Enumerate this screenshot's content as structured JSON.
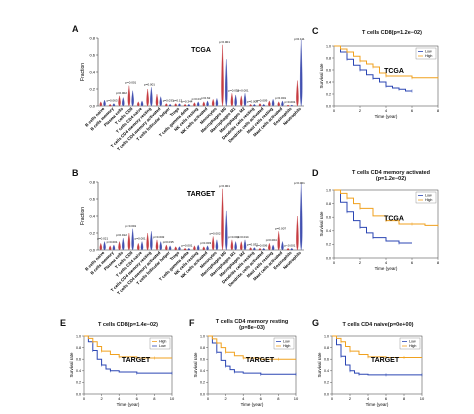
{
  "chart_data": [
    {
      "panel": "A",
      "type": "violin",
      "title": "TCGA",
      "ylabel": "Fraction",
      "ylim": [
        0,
        0.8
      ],
      "yticks": [
        "0.0",
        "0.2",
        "0.4",
        "0.6",
        "0.8"
      ],
      "categories": [
        "B cells naive",
        "B cells memory",
        "Plasma cells",
        "T cells CD8",
        "T cells CD4 naive",
        "T cells CD4 memory resting",
        "T cells CD4 memory activated",
        "T cells follicular helper",
        "Tregs",
        "T cells gamma delta",
        "NK cells resting",
        "NK cells activated",
        "Monocytes",
        "Macrophages M0",
        "Macrophages M1",
        "Macrophages M2",
        "Dendritic cells resting",
        "Dendritic cells activated",
        "Mast cells resting",
        "Mast cells activated",
        "Eosinophils",
        "Neutrophils"
      ],
      "series": [
        {
          "name": "Low",
          "color": "#c0282d",
          "values": [
            0.05,
            0.02,
            0.12,
            0.24,
            0.05,
            0.2,
            0.14,
            0.03,
            0.03,
            0.02,
            0.04,
            0.05,
            0.08,
            0.72,
            0.15,
            0.12,
            0.02,
            0.03,
            0.06,
            0.05,
            0.01,
            0.3
          ]
        },
        {
          "name": "High",
          "color": "#2e3ea8",
          "values": [
            0.07,
            0.03,
            0.1,
            0.18,
            0.06,
            0.22,
            0.11,
            0.02,
            0.03,
            0.02,
            0.05,
            0.06,
            0.09,
            0.55,
            0.13,
            0.15,
            0.02,
            0.02,
            0.08,
            0.06,
            0.01,
            0.78
          ]
        }
      ],
      "pvalues": [
        "",
        "p=0.063",
        "p=0.002",
        "p=0.001",
        "",
        "p=0.001",
        "",
        "p=0.033",
        "p=0.13",
        "p=0.344",
        "p=0.01",
        "p=0.62",
        "",
        "p<0.001",
        "p=0.052",
        "p<0.001",
        "p=0.003",
        "p=0.009",
        "",
        "p<0.001",
        "p=0.001",
        "p=0.111"
      ]
    },
    {
      "panel": "B",
      "type": "violin",
      "title": "TARGET",
      "ylabel": "Fraction",
      "ylim": [
        0,
        0.8
      ],
      "yticks": [
        "0.0",
        "0.2",
        "0.4",
        "0.6",
        "0.8"
      ],
      "categories": [
        "B cells naive",
        "B cells memory",
        "Plasma cells",
        "T cells CD8",
        "T cells CD4 naive",
        "T cells CD4 memory resting",
        "T cells CD4 memory activated",
        "T cells follicular helper",
        "Tregs",
        "T cells gamma delta",
        "NK cells resting",
        "NK cells activated",
        "Monocytes",
        "Macrophages M0",
        "Macrophages M1",
        "Macrophages M2",
        "Dendritic cells resting",
        "Dendritic cells activated",
        "Mast cells resting",
        "Mast cells activated",
        "Eosinophils",
        "Neutrophils"
      ],
      "series": [
        {
          "name": "Low",
          "color": "#c0282d",
          "values": [
            0.08,
            0.05,
            0.1,
            0.2,
            0.08,
            0.2,
            0.12,
            0.06,
            0.04,
            0.02,
            0.05,
            0.04,
            0.16,
            0.72,
            0.12,
            0.1,
            0.03,
            0.02,
            0.08,
            0.22,
            0.02,
            0.4
          ]
        },
        {
          "name": "High",
          "color": "#2e3ea8",
          "values": [
            0.1,
            0.06,
            0.14,
            0.25,
            0.1,
            0.22,
            0.1,
            0.05,
            0.04,
            0.02,
            0.06,
            0.05,
            0.12,
            0.46,
            0.1,
            0.12,
            0.03,
            0.02,
            0.06,
            0.1,
            0.02,
            0.78
          ]
        }
      ],
      "pvalues": [
        "p=0.021",
        "p=0.001",
        "p=0.012",
        "p<0.001",
        "p=0.001",
        "",
        "p=0.032",
        "p=0.035",
        "",
        "p=0.001",
        "",
        "p=0.003",
        "p=0.002",
        "p<0.001",
        "p=0.001",
        "p=0.014",
        "p=0.032",
        "p=0.006",
        "p=0.004",
        "p=0.007",
        "p<0.001",
        "p<0.001"
      ]
    },
    {
      "panel": "C",
      "type": "line",
      "title": "T cells CD8(p=1.2e−02)",
      "inner_title": "TCGA",
      "xlabel": "Time (year)",
      "ylabel": "Survival rate",
      "xlim": [
        0,
        8
      ],
      "ylim": [
        0,
        1
      ],
      "xticks": [
        "0",
        "2",
        "4",
        "6",
        "8"
      ],
      "yticks": [
        "0.0",
        "0.2",
        "0.4",
        "0.6",
        "0.8",
        "1.0"
      ],
      "legend": [
        "Low",
        "High"
      ],
      "series": [
        {
          "name": "Low",
          "color": "#2b46b3",
          "x": [
            0,
            0.5,
            1,
            1.5,
            2,
            2.5,
            3,
            3.5,
            4,
            4.5,
            5,
            5.5,
            6
          ],
          "y": [
            1,
            0.9,
            0.78,
            0.68,
            0.6,
            0.52,
            0.46,
            0.4,
            0.33,
            0.3,
            0.28,
            0.25,
            0.25
          ]
        },
        {
          "name": "High",
          "color": "#f0a11f",
          "x": [
            0,
            0.5,
            1,
            1.5,
            2,
            2.5,
            3,
            3.5,
            4,
            5,
            6,
            7,
            8
          ],
          "y": [
            1,
            0.95,
            0.9,
            0.83,
            0.75,
            0.7,
            0.65,
            0.55,
            0.5,
            0.5,
            0.47,
            0.47,
            0.47
          ]
        }
      ]
    },
    {
      "panel": "D",
      "type": "line",
      "title": "T cells CD4 memory activated (p=1.2e−02)",
      "inner_title": "TCGA",
      "xlabel": "Time (year)",
      "ylabel": "Survival rate",
      "xlim": [
        0,
        8
      ],
      "ylim": [
        0,
        1
      ],
      "xticks": [
        "0",
        "2",
        "4",
        "6",
        "8"
      ],
      "yticks": [
        "0.0",
        "0.2",
        "0.4",
        "0.6",
        "0.8",
        "1.0"
      ],
      "legend": [
        "Low",
        "High"
      ],
      "series": [
        {
          "name": "Low",
          "color": "#2b46b3",
          "x": [
            0,
            0.5,
            1,
            1.5,
            2,
            2.5,
            3,
            4,
            5,
            6
          ],
          "y": [
            1,
            0.82,
            0.68,
            0.55,
            0.45,
            0.37,
            0.3,
            0.25,
            0.22,
            0.22
          ]
        },
        {
          "name": "High",
          "color": "#f0a11f",
          "x": [
            0,
            0.5,
            1,
            1.5,
            2,
            3,
            4,
            5,
            6,
            7,
            8
          ],
          "y": [
            1,
            0.95,
            0.88,
            0.8,
            0.73,
            0.62,
            0.55,
            0.5,
            0.5,
            0.48,
            0.48
          ]
        }
      ]
    },
    {
      "panel": "E",
      "type": "line",
      "title": "T cells CD8(p=1.4e−02)",
      "inner_title": "TARGET",
      "xlabel": "Time (year)",
      "ylabel": "Survival rate",
      "xlim": [
        0,
        10
      ],
      "ylim": [
        0,
        1
      ],
      "xticks": [
        "0",
        "2",
        "4",
        "6",
        "8",
        "10"
      ],
      "yticks": [
        "0.0",
        "0.2",
        "0.4",
        "0.6",
        "0.8",
        "1.0"
      ],
      "legend": [
        "High",
        "Low"
      ],
      "series": [
        {
          "name": "Low",
          "color": "#2b46b3",
          "x": [
            0,
            0.5,
            1,
            1.5,
            2,
            2.5,
            3,
            4,
            6,
            8,
            10
          ],
          "y": [
            1,
            0.9,
            0.75,
            0.6,
            0.5,
            0.43,
            0.4,
            0.38,
            0.36,
            0.36,
            0.36
          ]
        },
        {
          "name": "High",
          "color": "#f0a11f",
          "x": [
            0,
            0.5,
            1,
            1.5,
            2,
            3,
            4,
            6,
            8,
            10
          ],
          "y": [
            1,
            0.96,
            0.9,
            0.82,
            0.74,
            0.68,
            0.64,
            0.62,
            0.62,
            0.62
          ]
        }
      ]
    },
    {
      "panel": "F",
      "type": "line",
      "title": "T cells CD4 memory resting (p=8e−03)",
      "inner_title": "TARGET",
      "xlabel": "Time (year)",
      "ylabel": "Survival rate",
      "xlim": [
        0,
        10
      ],
      "ylim": [
        0,
        1
      ],
      "xticks": [
        "0",
        "2",
        "4",
        "6",
        "8",
        "10"
      ],
      "yticks": [
        "0.0",
        "0.2",
        "0.4",
        "0.6",
        "0.8",
        "1.0"
      ],
      "legend": [
        "Low",
        "High"
      ],
      "series": [
        {
          "name": "Low",
          "color": "#2b46b3",
          "x": [
            0,
            0.5,
            1,
            1.5,
            2,
            2.5,
            3,
            4,
            6,
            8,
            10
          ],
          "y": [
            1,
            0.88,
            0.72,
            0.58,
            0.48,
            0.42,
            0.38,
            0.36,
            0.34,
            0.34,
            0.34
          ]
        },
        {
          "name": "High",
          "color": "#f0a11f",
          "x": [
            0,
            0.5,
            1,
            1.5,
            2,
            3,
            4,
            6,
            8,
            10
          ],
          "y": [
            1,
            0.95,
            0.88,
            0.8,
            0.72,
            0.66,
            0.62,
            0.6,
            0.6,
            0.6
          ]
        }
      ]
    },
    {
      "panel": "G",
      "type": "line",
      "title": "T cells CD4 naive(p=0e+00)",
      "inner_title": "TARGET",
      "xlabel": "Time (year)",
      "ylabel": "Survival rate",
      "xlim": [
        0,
        10
      ],
      "ylim": [
        0,
        1
      ],
      "xticks": [
        "0",
        "2",
        "4",
        "6",
        "8",
        "10"
      ],
      "yticks": [
        "0.0",
        "0.2",
        "0.4",
        "0.6",
        "0.8",
        "1.0"
      ],
      "legend": [
        "Low",
        "High"
      ],
      "series": [
        {
          "name": "Low",
          "color": "#2b46b3",
          "x": [
            0,
            0.5,
            1,
            1.5,
            2,
            2.5,
            3,
            4,
            6,
            8,
            10
          ],
          "y": [
            1,
            0.85,
            0.65,
            0.5,
            0.4,
            0.36,
            0.34,
            0.33,
            0.33,
            0.33,
            0.33
          ]
        },
        {
          "name": "High",
          "color": "#f0a11f",
          "x": [
            0,
            0.5,
            1,
            1.5,
            2,
            3,
            4,
            6,
            8,
            10
          ],
          "y": [
            1,
            0.96,
            0.9,
            0.82,
            0.74,
            0.68,
            0.64,
            0.63,
            0.63,
            0.63
          ]
        }
      ]
    }
  ]
}
